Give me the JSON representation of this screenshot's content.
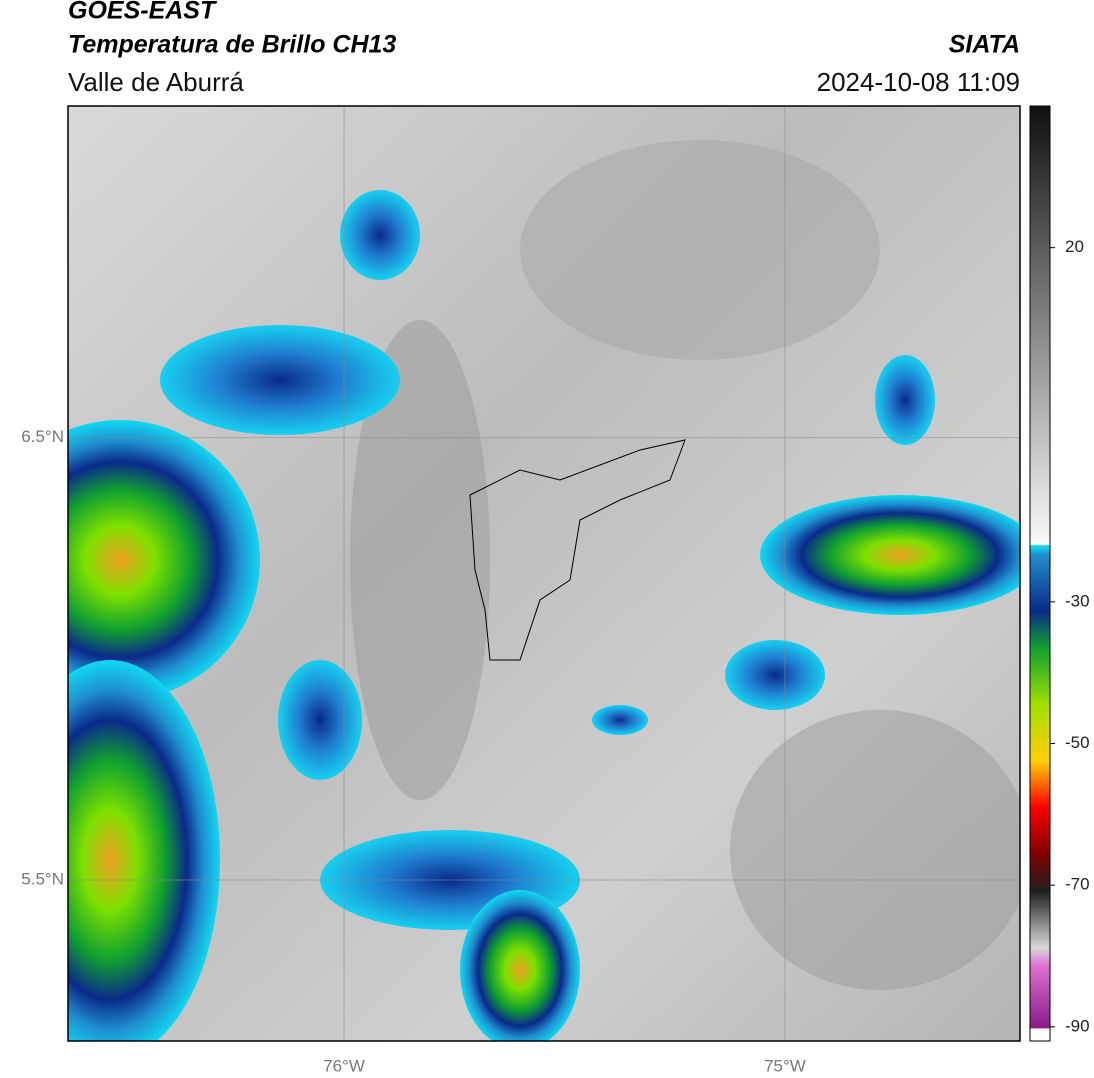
{
  "header": {
    "title": "GOES-EAST",
    "subtitle": "Temperatura de Brillo CH13",
    "region": "Valle de Aburrá",
    "source": "SIATA",
    "datetime": "2024-10-08 11:09"
  },
  "map": {
    "lat_lim": [
      5.136,
      7.25
    ],
    "lon_lim": [
      -76.626,
      -74.467
    ],
    "lat_ticks": [
      {
        "value": 6.5,
        "label": "6.5°N"
      },
      {
        "value": 5.5,
        "label": "5.5°N"
      }
    ],
    "lon_ticks": [
      {
        "value": -76,
        "label": "76°W"
      },
      {
        "value": -75,
        "label": "75°W"
      }
    ]
  },
  "colorbar": {
    "lim": [
      -92,
      40
    ],
    "ticks": [
      20,
      -30,
      -50,
      -70,
      -90
    ]
  }
}
